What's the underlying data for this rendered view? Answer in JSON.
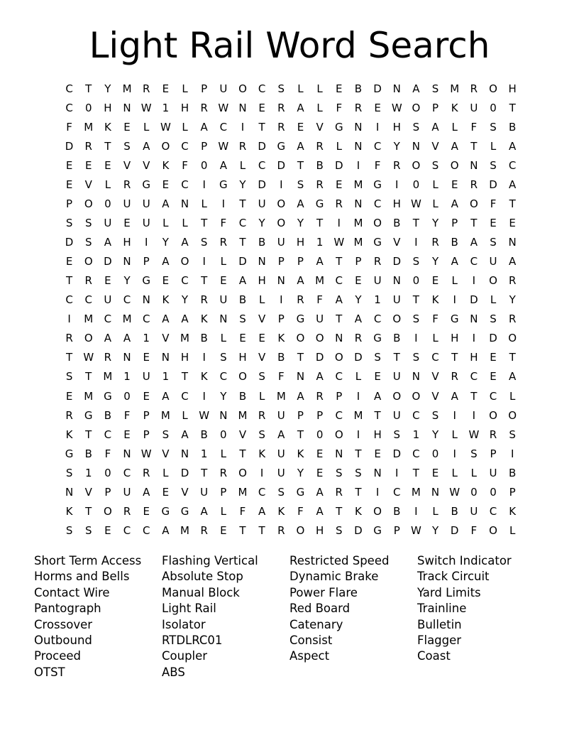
{
  "title": "Light Rail Word Search",
  "grid": [
    "CTYMRELPUOCSLLEBDNASMROH",
    "C0HNW1HRWNERALFREWOPKU0T",
    "FMKELWLACITREVGNIHSALFSB",
    "DRTSAOCPWRDGARLNCYNVATLA",
    "EEEVVKF0ALCDTBDIFROSONSC",
    "EVLRGECIGYDISREMGI0LERDA",
    "PO0UUANLITUOAGRNCHWLAOFT",
    "SSUEULLTFCYOYTIMOBTYPTEE",
    "DSAHIYASRTBUH1WMGVIRBASN",
    "EODNPAOILDNPPATPRDSYACUA",
    "TREYGECTEAHNAMCEUN0ELIOR",
    "CCUCNKYRUBLIRFAY1UTKIDLY",
    "IMCMCAAKNSVPGUTACOSFGNSR",
    "ROAA1VMBLEEKOONRGBILHIDO",
    "TWRNENHISHVBTDODSTSCTHET",
    "STM1U1TKCOSFNACLEUNVRCEA",
    "EMG0EACIYBLMARPIAOOVATCL",
    "RGBFPMLWNMRUPPCMTUCSIIOO",
    "KTCEPSAB0VSAT0OIHS1YLWRS",
    "GBFNWVN1LTKUKENTEDC0ISPI",
    "S10CRLDTROIUYESSNITELLUB",
    "NVPUAEVUPMCSGARTICMNW00P",
    "KTOREGGALFAKFATKOBILBUCK",
    "SSECCAMRETTROHSDGPWYDFOL"
  ],
  "word_columns": [
    [
      "Short Term Access",
      "Horms and Bells",
      "Contact Wire",
      "Pantograph",
      "Crossover",
      "Outbound",
      "Proceed",
      "OTST"
    ],
    [
      "Flashing Vertical",
      "Absolute Stop",
      "Manual Block",
      "Light Rail",
      "Isolator",
      "RTDLRC01",
      "Coupler",
      "ABS"
    ],
    [
      "Restricted Speed",
      "Dynamic Brake",
      "Power Flare",
      "Red Board",
      "Catenary",
      "Consist",
      "Aspect"
    ],
    [
      "Switch Indicator",
      "Track Circuit",
      "Yard Limits",
      "Trainline",
      "Bulletin",
      "Flagger",
      "Coast"
    ]
  ]
}
